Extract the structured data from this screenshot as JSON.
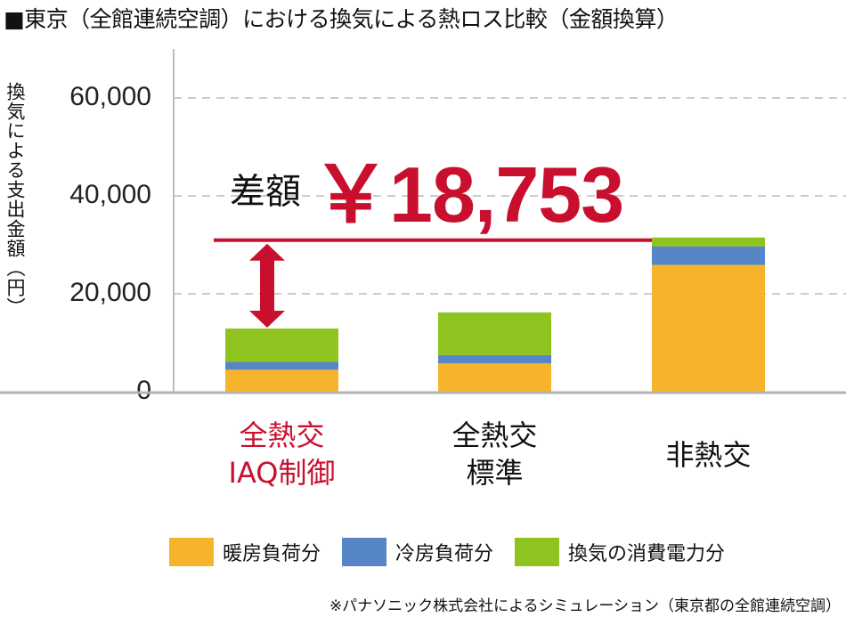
{
  "chart_data": {
    "type": "bar",
    "stacked": true,
    "title": "■東京（全館連続空調）における換気による熱ロス比較（金額換算）",
    "ylabel": "換気による支出金額（円）",
    "xlabel": "",
    "ylim": [
      0,
      70000
    ],
    "yticks": [
      "0",
      "20,000",
      "40,000",
      "60,000"
    ],
    "ytick_values": [
      0,
      20000,
      40000,
      60000
    ],
    "grid": true,
    "categories": [
      [
        "全熱交",
        "IAQ制御"
      ],
      [
        "全熱交",
        "標準"
      ],
      [
        "非熱交"
      ]
    ],
    "category_colors": [
      "#c8102e",
      "#111111",
      "#111111"
    ],
    "series": [
      {
        "name": "暖房負荷分",
        "color": "#f7b32b",
        "values": [
          4500,
          5800,
          25900
        ]
      },
      {
        "name": "冷房負荷分",
        "color": "#5686c5",
        "values": [
          1600,
          1700,
          3800
        ]
      },
      {
        "name": "換気の消費電力分",
        "color": "#8fc31f",
        "values": [
          6800,
          8700,
          1800
        ]
      }
    ],
    "annotation": {
      "label": "差額",
      "value": "￥18,753",
      "color": "#c8102e"
    },
    "legend_position": "bottom",
    "footnote": "※パナソニック株式会社によるシミュレーション（東京都の全館連続空調）"
  }
}
